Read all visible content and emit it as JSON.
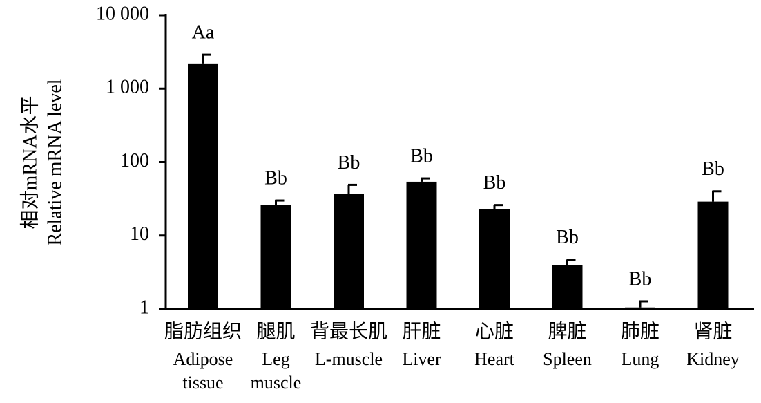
{
  "chart_data": {
    "type": "bar",
    "log_scale": true,
    "color": "#000000",
    "y_label": [
      "相对mRNA水平",
      "Relative mRNA level"
    ],
    "categories": [
      "脂肪组织",
      "腿肌",
      "背最长肌",
      "肝脏",
      "心脏",
      "脾脏",
      "肺脏",
      "肾脏"
    ],
    "categories_en": [
      [
        "Adipose",
        "tissue"
      ],
      [
        "Leg",
        "muscle"
      ],
      [
        "L-muscle"
      ],
      [
        "Liver"
      ],
      [
        "Heart"
      ],
      [
        "Spleen"
      ],
      [
        "Lung"
      ],
      [
        "Kidney"
      ]
    ],
    "values": [
      2200,
      26,
      37,
      54,
      23,
      4,
      1.05,
      29
    ],
    "errors": [
      700,
      4,
      12,
      6,
      3,
      0.7,
      0.22,
      11
    ],
    "significance_labels": [
      "Aa",
      "Bb",
      "Bb",
      "Bb",
      "Bb",
      "Bb",
      "Bb",
      "Bb"
    ],
    "ylim": [
      1,
      10000
    ],
    "yticks": [
      1,
      10,
      100,
      {
        "value": 1000,
        "label": "1 000"
      },
      {
        "value": 10000,
        "label": "10 000"
      }
    ]
  }
}
